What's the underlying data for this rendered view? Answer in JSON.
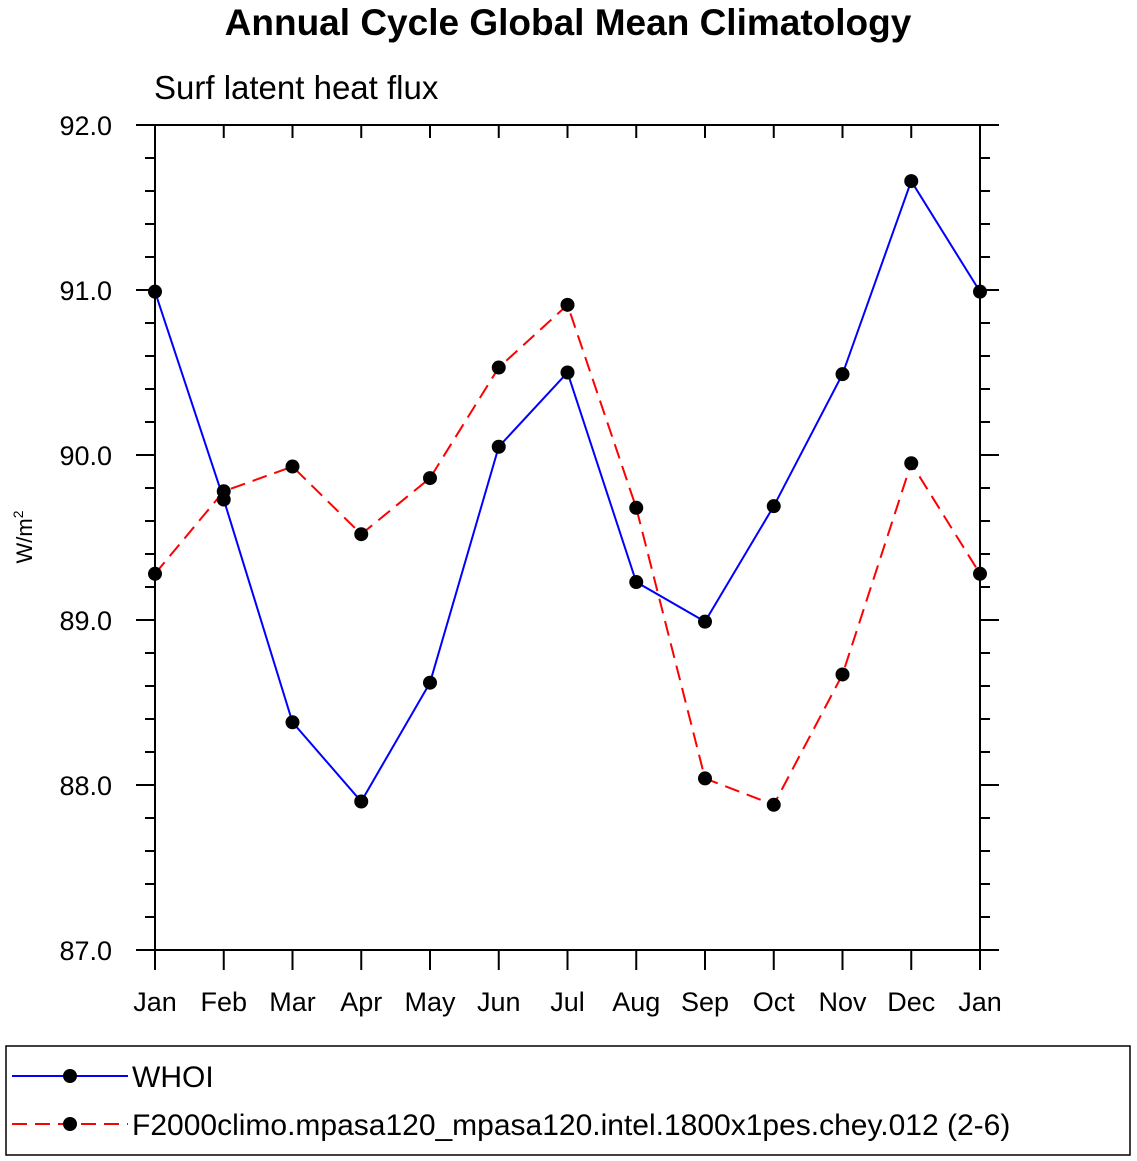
{
  "chart_data": {
    "type": "line",
    "title": "Annual Cycle Global Mean Climatology",
    "subtitle": "Surf latent heat flux",
    "ylabel": "W/m",
    "ylabel_superscript": "2",
    "xlabel": "",
    "categories": [
      "Jan",
      "Feb",
      "Mar",
      "Apr",
      "May",
      "Jun",
      "Jul",
      "Aug",
      "Sep",
      "Oct",
      "Nov",
      "Dec",
      "Jan"
    ],
    "ylim": [
      87.0,
      92.0
    ],
    "yticks": [
      "87.0",
      "88.0",
      "89.0",
      "90.0",
      "91.0",
      "92.0"
    ],
    "grid": false,
    "legend_position": "bottom",
    "series": [
      {
        "name": "WHOI",
        "color": "#0000ff",
        "dash": "solid",
        "values": [
          90.99,
          89.73,
          88.38,
          87.9,
          88.62,
          90.05,
          90.5,
          89.23,
          88.99,
          89.69,
          90.49,
          91.66,
          90.99
        ]
      },
      {
        "name": "F2000climo.mpasa120_mpasa120.intel.1800x1pes.chey.012 (2-6)",
        "color": "#ff0000",
        "dash": "dashed",
        "values": [
          89.28,
          89.78,
          89.93,
          89.52,
          89.86,
          90.53,
          90.91,
          89.68,
          88.04,
          87.88,
          88.67,
          89.95,
          89.28
        ]
      }
    ]
  }
}
